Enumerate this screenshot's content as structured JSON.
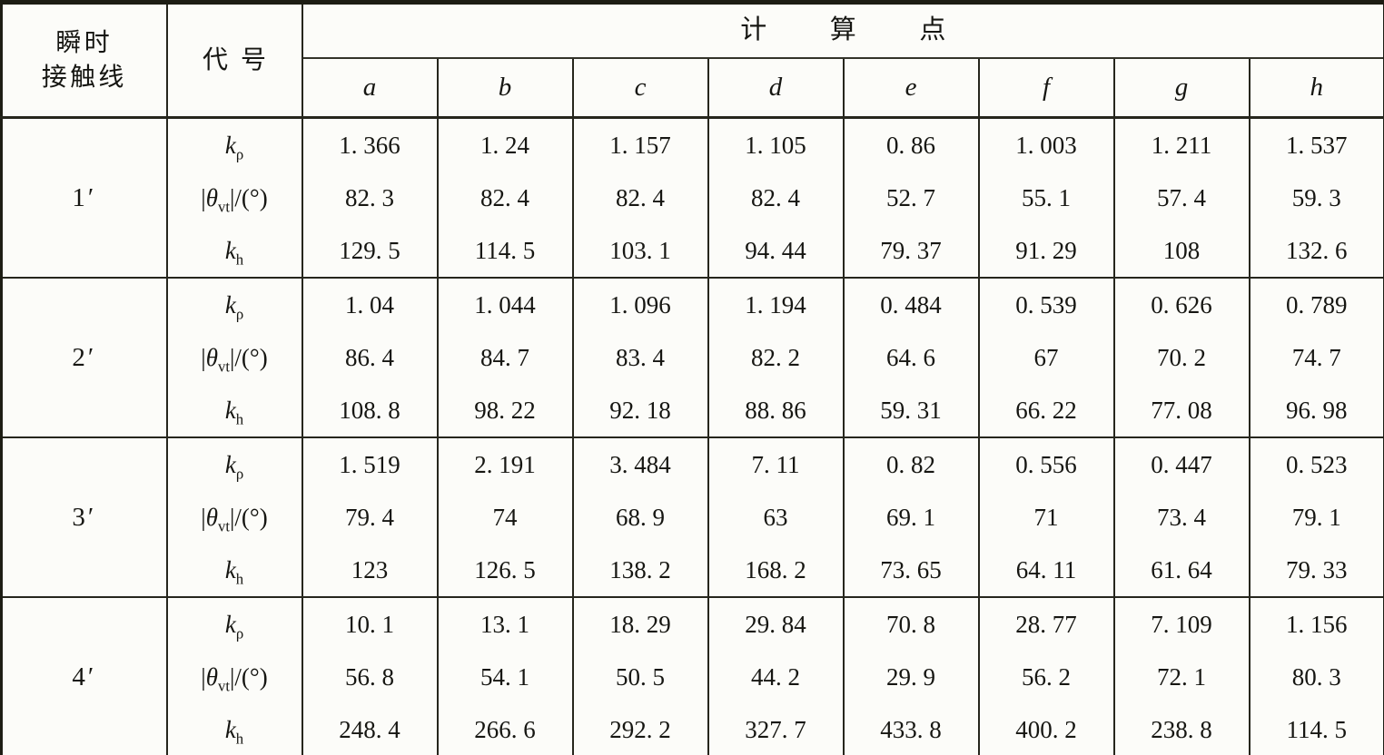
{
  "table": {
    "header": {
      "row_label_line1": "瞬时",
      "row_label_line2": "接触线",
      "col_symbol": "代号",
      "points_group": "计算点",
      "point_labels": [
        "a",
        "b",
        "c",
        "d",
        "e",
        "f",
        "g",
        "h"
      ]
    },
    "symbols": [
      {
        "name": "k-rho",
        "prefix": "",
        "base": "k",
        "sub": "ρ",
        "suffix": "",
        "display": "k_ρ"
      },
      {
        "name": "theta-vt-abs",
        "prefix": "|",
        "base": "θ",
        "sub": "vt",
        "suffix": "|/(°)",
        "display": "|θ_vt|/(°)"
      },
      {
        "name": "k-h",
        "prefix": "",
        "base": "k",
        "sub": "h",
        "suffix": "",
        "display": "k_h"
      }
    ],
    "groups": [
      {
        "label": "1′",
        "rows": [
          {
            "cells": [
              "1. 366",
              "1. 24",
              "1. 157",
              "1. 105",
              "0. 86",
              "1. 003",
              "1. 211",
              "1. 537"
            ]
          },
          {
            "cells": [
              "82. 3",
              "82. 4",
              "82. 4",
              "82. 4",
              "52. 7",
              "55. 1",
              "57. 4",
              "59. 3"
            ]
          },
          {
            "cells": [
              "129. 5",
              "114. 5",
              "103. 1",
              "94. 44",
              "79. 37",
              "91. 29",
              "108",
              "132. 6"
            ]
          }
        ]
      },
      {
        "label": "2′",
        "rows": [
          {
            "cells": [
              "1. 04",
              "1. 044",
              "1. 096",
              "1. 194",
              "0. 484",
              "0. 539",
              "0. 626",
              "0. 789"
            ]
          },
          {
            "cells": [
              "86. 4",
              "84. 7",
              "83. 4",
              "82. 2",
              "64. 6",
              "67",
              "70. 2",
              "74. 7"
            ]
          },
          {
            "cells": [
              "108. 8",
              "98. 22",
              "92. 18",
              "88. 86",
              "59. 31",
              "66. 22",
              "77. 08",
              "96. 98"
            ]
          }
        ]
      },
      {
        "label": "3′",
        "rows": [
          {
            "cells": [
              "1. 519",
              "2. 191",
              "3. 484",
              "7. 11",
              "0. 82",
              "0. 556",
              "0. 447",
              "0. 523"
            ]
          },
          {
            "cells": [
              "79. 4",
              "74",
              "68. 9",
              "63",
              "69. 1",
              "71",
              "73. 4",
              "79. 1"
            ]
          },
          {
            "cells": [
              "123",
              "126. 5",
              "138. 2",
              "168. 2",
              "73. 65",
              "64. 11",
              "61. 64",
              "79. 33"
            ]
          }
        ]
      },
      {
        "label": "4′",
        "rows": [
          {
            "cells": [
              "10. 1",
              "13. 1",
              "18. 29",
              "29. 84",
              "70. 8",
              "28. 77",
              "7. 109",
              "1. 156"
            ]
          },
          {
            "cells": [
              "56. 8",
              "54. 1",
              "50. 5",
              "44. 2",
              "29. 9",
              "56. 2",
              "72. 1",
              "80. 3"
            ]
          },
          {
            "cells": [
              "248. 4",
              "266. 6",
              "292. 2",
              "327. 7",
              "433. 8",
              "400. 2",
              "238. 8",
              "114. 5"
            ]
          }
        ]
      }
    ]
  }
}
